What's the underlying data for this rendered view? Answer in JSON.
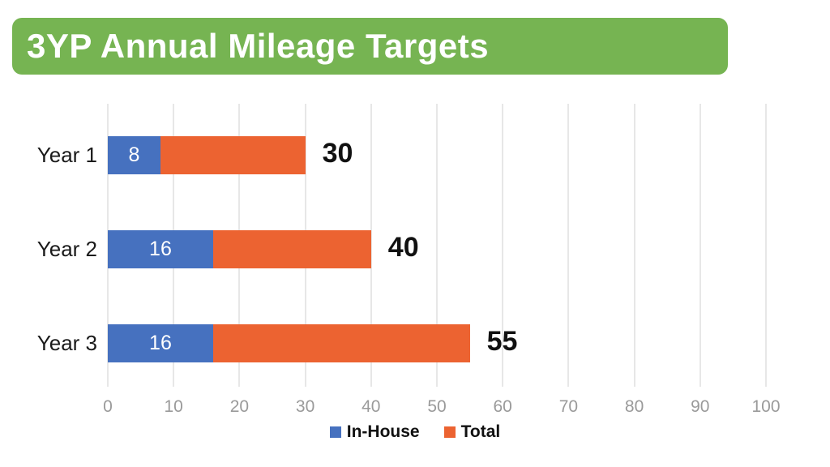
{
  "title": {
    "text": "3YP Annual Mileage Targets"
  },
  "colors": {
    "banner_green": "#76B452",
    "in_house_blue": "#4671BF",
    "total_orange": "#EC6331",
    "grid_line": "#E7E7E7",
    "tick_label": "#9A9A9A",
    "inside_label": "#FFFFFF",
    "outside_label": "#111111"
  },
  "chart_data": {
    "type": "bar",
    "orientation": "horizontal",
    "stacked": true,
    "title": "3YP Annual Mileage Targets",
    "categories": [
      "Year 1",
      "Year 2",
      "Year 3"
    ],
    "series": [
      {
        "name": "In-House",
        "color": "#4671BF",
        "values": [
          8,
          16,
          16
        ]
      },
      {
        "name": "Total",
        "color": "#EC6331",
        "values": [
          30,
          40,
          55
        ],
        "note": "bar extends to this cumulative total"
      }
    ],
    "segment_labels": [
      "8",
      "16",
      "16"
    ],
    "total_labels": [
      "30",
      "40",
      "55"
    ],
    "xlim": [
      0,
      100
    ],
    "x_ticks": [
      0,
      10,
      20,
      30,
      40,
      50,
      60,
      70,
      80,
      90,
      100
    ],
    "grid": true,
    "legend": {
      "position": "bottom",
      "items": [
        {
          "label": "In-House",
          "color": "#4671BF"
        },
        {
          "label": "Total",
          "color": "#EC6331"
        }
      ]
    }
  }
}
